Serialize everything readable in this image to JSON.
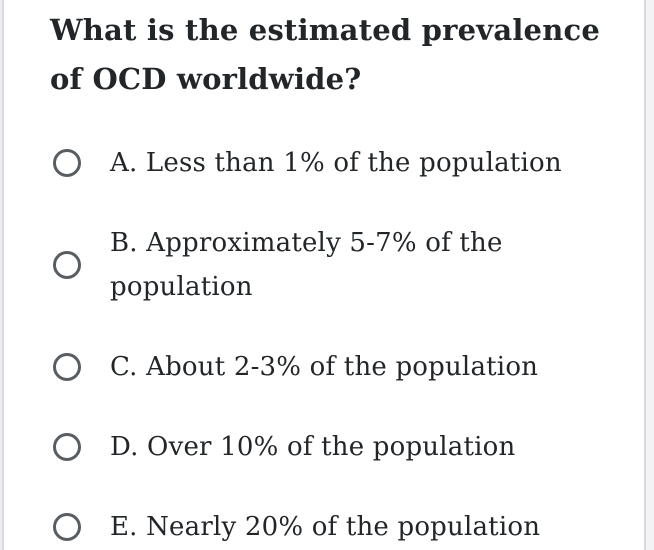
{
  "question": {
    "text": "What is the estimated prevalence of OCD worldwide?"
  },
  "options": [
    {
      "label": "A. Less than 1% of the population",
      "selected": false
    },
    {
      "label": "B. Approximately 5-7% of the population",
      "selected": false
    },
    {
      "label": "C. About 2-3% of the population",
      "selected": false
    },
    {
      "label": "D. Over 10% of the population",
      "selected": false
    },
    {
      "label": "E. Nearly 20% of the population",
      "selected": false
    }
  ],
  "colors": {
    "text": "#222629",
    "radio_border": "#585d62",
    "card_border": "#d8d8df",
    "background": "#ffffff"
  }
}
